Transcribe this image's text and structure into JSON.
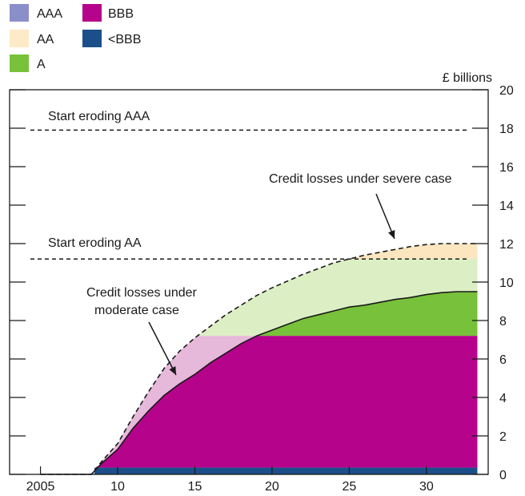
{
  "chart_data": {
    "type": "area",
    "units_label": "£ billions",
    "xlim": [
      2003,
      2034
    ],
    "ylim": [
      0,
      20
    ],
    "x_ticks": [
      2005,
      2010,
      2015,
      2020,
      2025,
      2030
    ],
    "x_tick_labels": [
      "2005",
      "10",
      "15",
      "20",
      "25",
      "30"
    ],
    "y_ticks": [
      0,
      2,
      4,
      6,
      8,
      10,
      12,
      14,
      16,
      18,
      20
    ],
    "y_tick_labels": [
      "0",
      "2",
      "4",
      "6",
      "8",
      "10",
      "12",
      "14",
      "16",
      "18",
      "20"
    ],
    "tranches": [
      {
        "name": "AAA",
        "color": "#8b8fc9",
        "from": 11.2,
        "to": 18
      },
      {
        "name": "AA",
        "color": "#fdebc8",
        "from": 7.2,
        "to": 11.2
      },
      {
        "name": "A",
        "color": "#78c13a",
        "from": 7.2,
        "to": 11.2
      },
      {
        "name": "BBB",
        "color": "#b5048b",
        "from": 0.35,
        "to": 7.2
      },
      {
        "name": "<BBB",
        "color": "#1b4f8a",
        "from": 0,
        "to": 0.35
      }
    ],
    "thresholds": [
      {
        "label": "Start eroding AAA",
        "value": 17.9
      },
      {
        "label": "Start eroding AA",
        "value": 11.2
      }
    ],
    "moderate_case": {
      "label": "Credit losses under moderate case",
      "x": [
        2005,
        2008.3,
        2009,
        2010,
        2011,
        2012,
        2013,
        2014,
        2015,
        2016,
        2017,
        2018,
        2019,
        2020,
        2021,
        2022,
        2023,
        2024,
        2025,
        2026,
        2027,
        2028,
        2029,
        2030,
        2031,
        2032,
        2033.3
      ],
      "y": [
        0,
        0,
        0.6,
        1.3,
        2.4,
        3.3,
        4.1,
        4.7,
        5.2,
        5.8,
        6.3,
        6.8,
        7.2,
        7.5,
        7.8,
        8.1,
        8.3,
        8.5,
        8.7,
        8.8,
        8.95,
        9.1,
        9.2,
        9.35,
        9.45,
        9.5,
        9.5
      ]
    },
    "severe_case": {
      "label": "Credit losses under severe case",
      "x": [
        2005,
        2008.3,
        2009,
        2010,
        2011,
        2012,
        2013,
        2014,
        2015,
        2016,
        2017,
        2018,
        2019,
        2020,
        2021,
        2022,
        2023,
        2024,
        2025,
        2026,
        2027,
        2028,
        2029,
        2030,
        2031,
        2032,
        2033.3
      ],
      "y": [
        0,
        0,
        0.7,
        1.6,
        3.0,
        4.3,
        5.5,
        6.4,
        7.1,
        7.7,
        8.3,
        8.8,
        9.3,
        9.7,
        10.05,
        10.4,
        10.7,
        11.0,
        11.2,
        11.4,
        11.55,
        11.7,
        11.85,
        11.95,
        12.0,
        12.0,
        12.0
      ]
    }
  }
}
